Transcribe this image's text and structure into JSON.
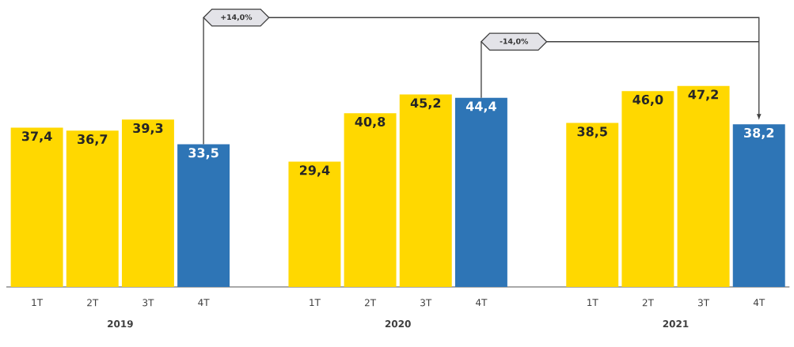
{
  "chart_data": {
    "type": "bar",
    "categories": [
      "1T",
      "2T",
      "3T",
      "4T",
      "1T",
      "2T",
      "3T",
      "4T",
      "1T",
      "2T",
      "3T",
      "4T"
    ],
    "values": [
      37.4,
      36.7,
      39.3,
      33.5,
      29.4,
      40.8,
      45.2,
      44.4,
      38.5,
      46.0,
      47.2,
      38.2
    ],
    "value_labels": [
      "37,4",
      "36,7",
      "39,3",
      "33,5",
      "29,4",
      "40,8",
      "45,2",
      "44,4",
      "38,5",
      "46,0",
      "47,2",
      "38,2"
    ],
    "colors": [
      "#ffd800",
      "#ffd800",
      "#ffd800",
      "#2e75b6",
      "#ffd800",
      "#ffd800",
      "#ffd800",
      "#2e75b6",
      "#ffd800",
      "#ffd800",
      "#ffd800",
      "#2e75b6"
    ],
    "annotations": [
      "2019",
      "2020",
      "2021",
      "+14,0%",
      "-14,0%"
    ]
  }
}
